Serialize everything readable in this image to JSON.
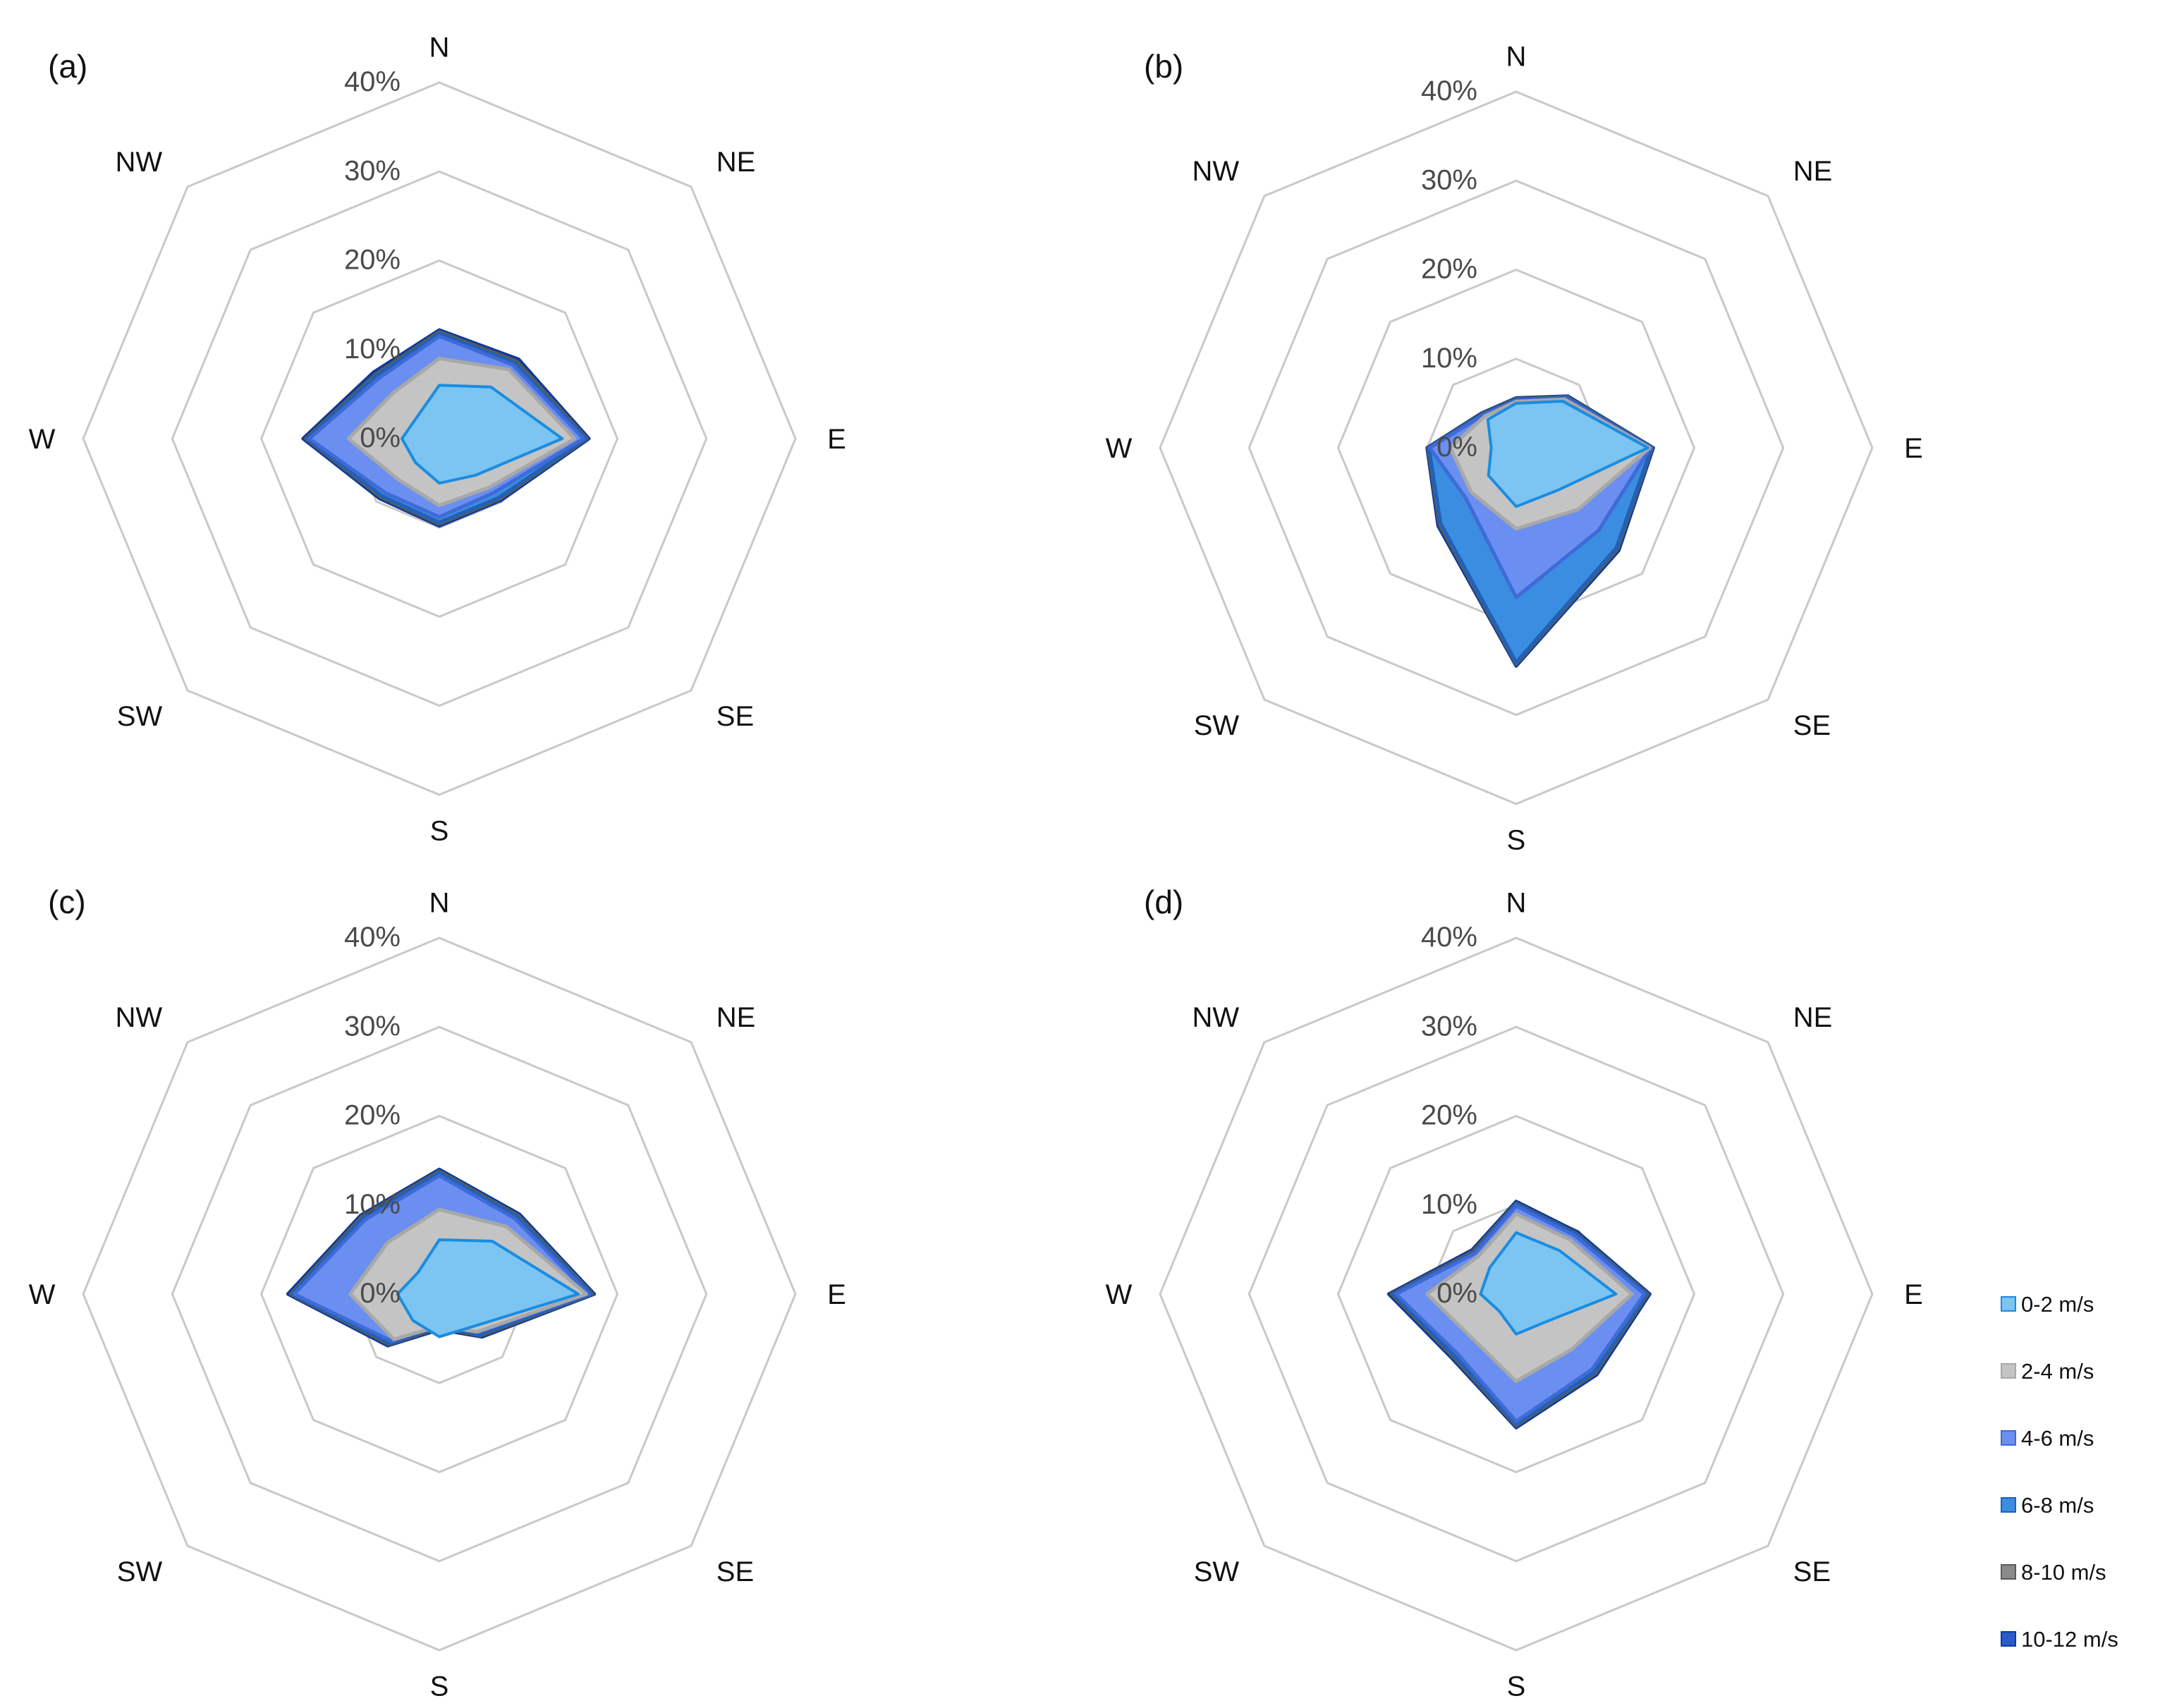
{
  "chart_data": {
    "type": "radar",
    "directions": [
      "N",
      "NE",
      "E",
      "SE",
      "S",
      "SW",
      "W",
      "NW"
    ],
    "radial_ticks": [
      "0%",
      "10%",
      "20%",
      "30%",
      "40%"
    ],
    "radial_range": [
      0,
      40
    ],
    "legend": [
      {
        "name": "0-2 m/s",
        "fill": "#7cc4f2",
        "stroke": "#1a8ce0"
      },
      {
        "name": "2-4 m/s",
        "fill": "#c4c4c4",
        "stroke": "#a8a8a8"
      },
      {
        "name": "4-6 m/s",
        "fill": "#6a8ff0",
        "stroke": "#3f6ad8"
      },
      {
        "name": "6-8 m/s",
        "fill": "#3a8de0",
        "stroke": "#1f62b8"
      },
      {
        "name": "8-10 m/s",
        "fill": "#8a8a8a",
        "stroke": "#5a5a5a"
      },
      {
        "name": "10-12 m/s",
        "fill": "#2a5cc9",
        "stroke": "#0b3a9e"
      }
    ],
    "panels": [
      {
        "label": "(a)",
        "series": [
          {
            "name": "10-12 m/s",
            "values": [
              12.2,
              12.6,
              16.8,
              9.8,
              9.8,
              9.5,
              15.3,
              10.5
            ]
          },
          {
            "name": "8-10 m/s",
            "values": [
              12.0,
              12.3,
              16.6,
              9.6,
              9.6,
              9.3,
              15.0,
              10.2
            ]
          },
          {
            "name": "6-8 m/s",
            "values": [
              11.8,
              12.0,
              16.4,
              9.4,
              9.4,
              9.1,
              14.8,
              10.0
            ]
          },
          {
            "name": "4-6 m/s",
            "values": [
              11.5,
              11.7,
              16.2,
              8.6,
              8.8,
              8.6,
              14.6,
              9.6
            ]
          },
          {
            "name": "2-4 m/s",
            "values": [
              9.0,
              11.0,
              15.2,
              7.8,
              7.5,
              6.5,
              10.2,
              7.3
            ]
          },
          {
            "name": "0-2 m/s",
            "values": [
              6.0,
              8.2,
              13.8,
              5.8,
              5.0,
              3.8,
              4.2,
              3.5
            ]
          }
        ]
      },
      {
        "label": "(b)",
        "series": [
          {
            "name": "10-12 m/s",
            "values": [
              5.6,
              8.2,
              15.4,
              16.3,
              24.5,
              12.4,
              10.0,
              5.5
            ]
          },
          {
            "name": "8-10 m/s",
            "values": [
              5.5,
              8.1,
              15.3,
              16.1,
              24.3,
              12.2,
              9.9,
              5.4
            ]
          },
          {
            "name": "6-8 m/s",
            "values": [
              5.4,
              8.0,
              15.2,
              15.9,
              24.1,
              12.0,
              9.8,
              5.3
            ]
          },
          {
            "name": "4-6 m/s",
            "values": [
              5.3,
              7.9,
              15.1,
              13.1,
              16.8,
              8.0,
              9.7,
              5.2
            ]
          },
          {
            "name": "2-4 m/s",
            "values": [
              5.2,
              7.7,
              15.0,
              9.8,
              9.1,
              7.1,
              7.4,
              5.0
            ]
          },
          {
            "name": "0-2 m/s",
            "values": [
              5.0,
              7.4,
              14.8,
              6.7,
              6.6,
              4.4,
              2.8,
              4.5
            ]
          }
        ]
      },
      {
        "label": "(c)",
        "series": [
          {
            "name": "10-12 m/s",
            "values": [
              14.0,
              12.7,
              17.4,
              6.8,
              4.0,
              8.2,
              17.0,
              12.5
            ]
          },
          {
            "name": "8-10 m/s",
            "values": [
              13.8,
              12.5,
              17.2,
              6.6,
              3.8,
              8.0,
              16.7,
              12.3
            ]
          },
          {
            "name": "6-8 m/s",
            "values": [
              13.6,
              12.3,
              17.0,
              6.4,
              3.6,
              7.8,
              16.5,
              12.1
            ]
          },
          {
            "name": "4-6 m/s",
            "values": [
              13.3,
              12.0,
              16.8,
              6.1,
              3.4,
              7.5,
              16.3,
              11.8
            ]
          },
          {
            "name": "2-4 m/s",
            "values": [
              9.5,
              10.7,
              16.5,
              6.0,
              3.6,
              7.2,
              10.0,
              8.2
            ]
          },
          {
            "name": "0-2 m/s",
            "values": [
              6.1,
              8.4,
              15.6,
              5.2,
              4.8,
              4.2,
              4.7,
              3.4
            ]
          }
        ]
      },
      {
        "label": "(d)",
        "series": [
          {
            "name": "10-12 m/s",
            "values": [
              10.4,
              9.8,
              15.0,
              12.8,
              15.0,
              10.2,
              14.3,
              7.0
            ]
          },
          {
            "name": "8-10 m/s",
            "values": [
              10.2,
              9.6,
              14.8,
              12.6,
              14.8,
              10.0,
              14.0,
              6.8
            ]
          },
          {
            "name": "6-8 m/s",
            "values": [
              10.1,
              9.5,
              14.6,
              12.4,
              14.6,
              9.8,
              13.8,
              6.6
            ]
          },
          {
            "name": "4-6 m/s",
            "values": [
              9.9,
              9.3,
              14.4,
              12.0,
              14.3,
              9.4,
              13.5,
              6.5
            ]
          },
          {
            "name": "2-4 m/s",
            "values": [
              9.0,
              8.6,
              13.0,
              8.8,
              9.8,
              7.0,
              10.0,
              6.0
            ]
          },
          {
            "name": "0-2 m/s",
            "values": [
              6.9,
              6.9,
              11.2,
              4.5,
              4.5,
              2.7,
              4.0,
              4.2
            ]
          }
        ]
      }
    ]
  }
}
